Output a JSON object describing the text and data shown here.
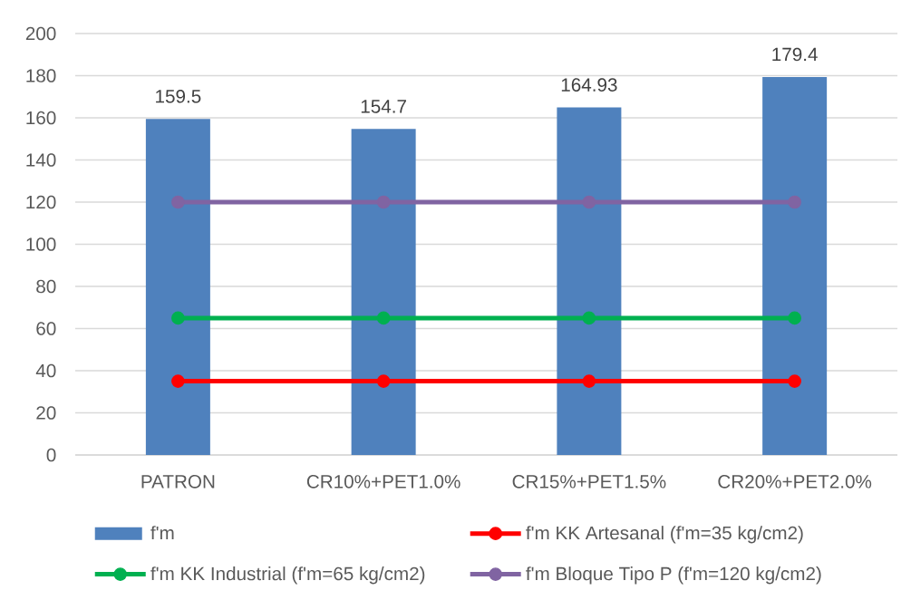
{
  "chart_data": {
    "type": "bar",
    "categories": [
      "PATRON",
      "CR10%+PET1.0%",
      "CR15%+PET1.5%",
      "CR20%+PET2.0%"
    ],
    "series": [
      {
        "name": "f'm",
        "color": "#4f81bd",
        "values": [
          159.5,
          154.7,
          164.93,
          179.4
        ],
        "value_labels": [
          "159.5",
          "154.7",
          "164.93",
          "179.4"
        ]
      },
      {
        "name": "f'm KK Artesanal (f'm=35 kg/cm2)",
        "type": "line",
        "color": "#ff0000",
        "values": [
          35,
          35,
          35,
          35
        ]
      },
      {
        "name": "f'm KK Industrial (f'm=65 kg/cm2)",
        "type": "line",
        "color": "#00b050",
        "values": [
          65,
          65,
          65,
          65
        ]
      },
      {
        "name": "f'm Bloque Tipo P (f'm=120 kg/cm2)",
        "type": "line",
        "color": "#8064a2",
        "values": [
          120,
          120,
          120,
          120
        ]
      }
    ],
    "ylim": [
      0,
      200
    ],
    "yticks": [
      0,
      20,
      40,
      60,
      80,
      100,
      120,
      140,
      160,
      180,
      200
    ],
    "grid": "y",
    "legend": "bottom",
    "marker": "circle",
    "line_style": "solid"
  }
}
